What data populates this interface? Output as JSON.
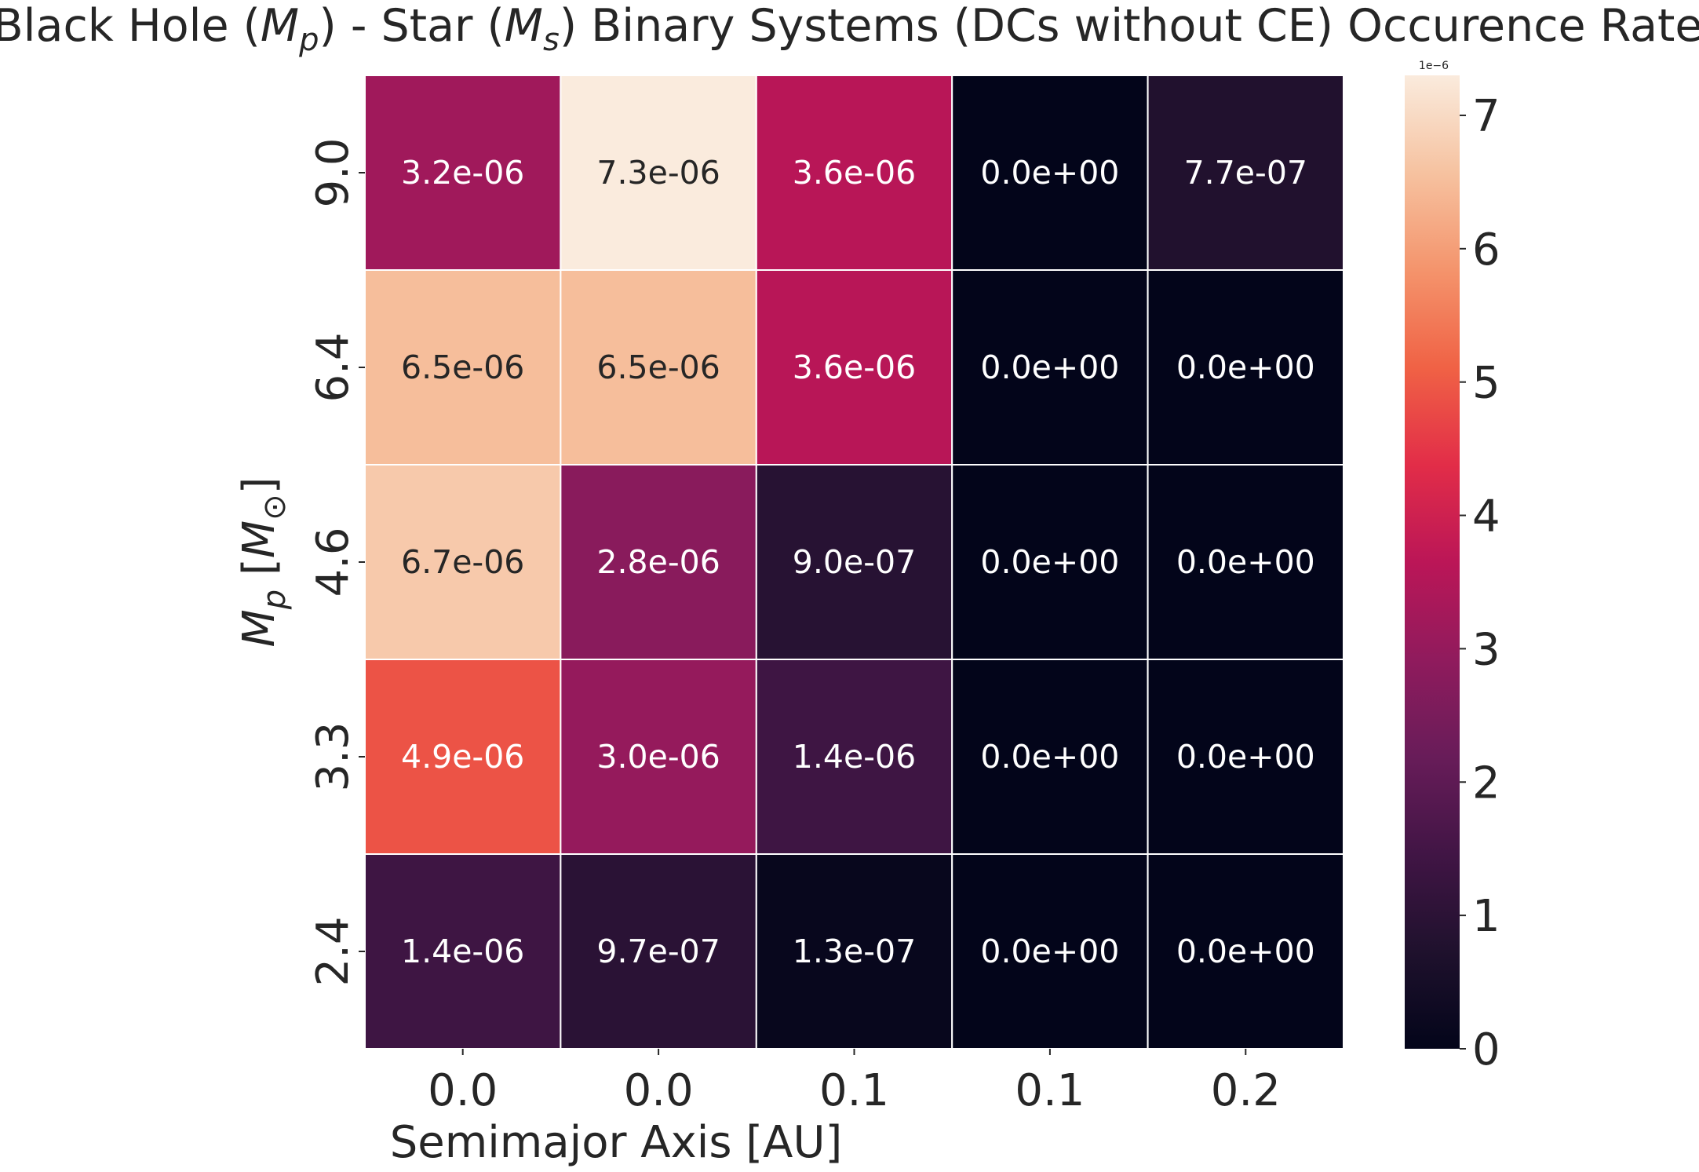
{
  "chart_data": {
    "type": "heatmap",
    "title": "Black Hole (M_p)  - Star (M_s) Binary Systems (DCs without CE) Occurence Rate",
    "title_parts": [
      "Black Hole (",
      "M",
      "p",
      ")  - Star (",
      "M",
      "s",
      ") Binary Systems (DCs without CE) Occurence Rate"
    ],
    "xlabel": "Semimajor Axis [AU]",
    "ylabel": "M_p  [M_⊙]",
    "ylabel_parts": [
      "M",
      "p",
      "  [",
      "M",
      "⊙",
      "]"
    ],
    "x_tick_labels": [
      "0.0",
      "0.0",
      "0.1",
      "0.1",
      "0.2"
    ],
    "y_tick_labels": [
      "9.0",
      "6.4",
      "4.6",
      "3.3",
      "2.4"
    ],
    "values": [
      [
        3.2e-06,
        7.3e-06,
        3.6e-06,
        0.0,
        7.7e-07
      ],
      [
        6.5e-06,
        6.5e-06,
        3.6e-06,
        0.0,
        0.0
      ],
      [
        6.7e-06,
        2.8e-06,
        9e-07,
        0.0,
        0.0
      ],
      [
        4.9e-06,
        3e-06,
        1.4e-06,
        0.0,
        0.0
      ],
      [
        1.4e-06,
        9.7e-07,
        1.3e-07,
        0.0,
        0.0
      ]
    ],
    "annotations": [
      [
        "3.2e-06",
        "7.3e-06",
        "3.6e-06",
        "0.0e+00",
        "7.7e-07"
      ],
      [
        "6.5e-06",
        "6.5e-06",
        "3.6e-06",
        "0.0e+00",
        "0.0e+00"
      ],
      [
        "6.7e-06",
        "2.8e-06",
        "9.0e-07",
        "0.0e+00",
        "0.0e+00"
      ],
      [
        "4.9e-06",
        "3.0e-06",
        "1.4e-06",
        "0.0e+00",
        "0.0e+00"
      ],
      [
        "1.4e-06",
        "9.7e-07",
        "1.3e-07",
        "0.0e+00",
        "0.0e+00"
      ]
    ],
    "colorbar": {
      "colormap": "rocket",
      "vmin": 0,
      "vmax": 7.3e-06,
      "ticks": [
        0,
        1,
        2,
        3,
        4,
        5,
        6,
        7
      ],
      "tick_labels": [
        "0",
        "1",
        "2",
        "3",
        "4",
        "5",
        "6",
        "7"
      ],
      "scale_label": "1e−6"
    }
  }
}
